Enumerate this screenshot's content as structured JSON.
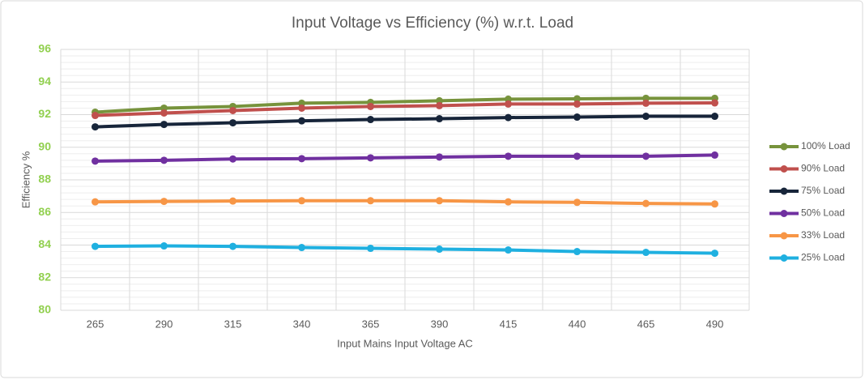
{
  "chart_data": {
    "type": "line",
    "title": "Input Voltage vs Efficiency (%) w.r.t. Load",
    "x_label": "Input Mains Input Voltage AC",
    "y_label": "Efficiency %",
    "categories": [
      "265",
      "290",
      "315",
      "340",
      "365",
      "390",
      "415",
      "440",
      "465",
      "490"
    ],
    "series": [
      {
        "name": "100% Load",
        "color": "#77933c",
        "values": [
          92.15,
          92.4,
          92.5,
          92.7,
          92.75,
          92.85,
          92.95,
          92.97,
          93.0,
          93.0
        ]
      },
      {
        "name": "90% Load",
        "color": "#c0504d",
        "values": [
          91.95,
          92.1,
          92.25,
          92.4,
          92.5,
          92.55,
          92.65,
          92.65,
          92.7,
          92.72
        ]
      },
      {
        "name": "75% Load",
        "color": "#17253a",
        "values": [
          91.25,
          91.4,
          91.5,
          91.62,
          91.7,
          91.75,
          91.82,
          91.85,
          91.9,
          91.9
        ]
      },
      {
        "name": "50% Load",
        "color": "#7030a0",
        "values": [
          89.15,
          89.2,
          89.28,
          89.3,
          89.35,
          89.4,
          89.45,
          89.45,
          89.45,
          89.52
        ]
      },
      {
        "name": "33% Load",
        "color": "#f79646",
        "values": [
          86.65,
          86.68,
          86.7,
          86.72,
          86.72,
          86.72,
          86.65,
          86.62,
          86.55,
          86.52
        ]
      },
      {
        "name": "25% Load",
        "color": "#1fb0e0",
        "values": [
          83.92,
          83.95,
          83.92,
          83.85,
          83.8,
          83.75,
          83.7,
          83.6,
          83.55,
          83.5
        ]
      }
    ],
    "ylim": [
      80,
      96
    ],
    "yticks": [
      80,
      82,
      84,
      86,
      88,
      90,
      92,
      94,
      96
    ],
    "grid": true,
    "legend": "right"
  }
}
